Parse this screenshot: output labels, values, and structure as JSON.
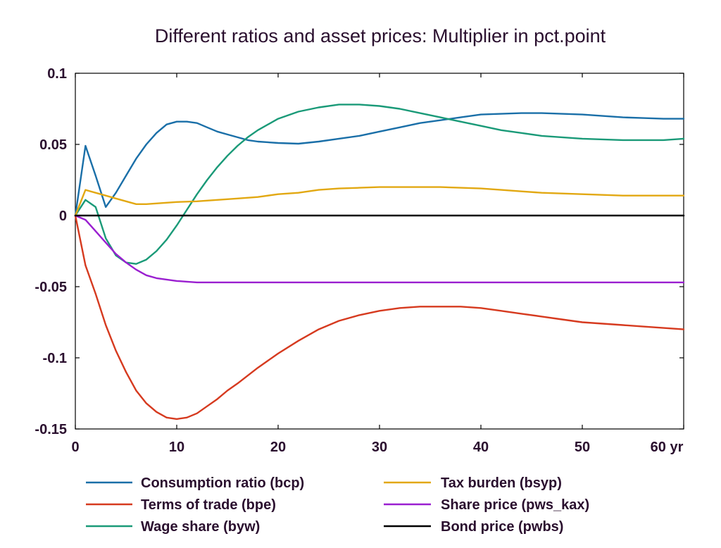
{
  "chart_data": {
    "type": "line",
    "title": "Different ratios and asset prices: Multiplier in pct.point",
    "xlabel": "",
    "ylabel": "",
    "xlim": [
      0,
      60
    ],
    "ylim": [
      -0.15,
      0.1
    ],
    "x_ticks": [
      0,
      10,
      20,
      30,
      40,
      50,
      60
    ],
    "x_tick_labels": [
      "0",
      "10",
      "20",
      "30",
      "40",
      "50",
      "60 yr"
    ],
    "y_ticks": [
      0.1,
      0.05,
      0,
      -0.05,
      -0.1,
      -0.15
    ],
    "y_tick_labels": [
      "0.1",
      "0.05",
      "0",
      "-0.05",
      "-0.1",
      "-0.15"
    ],
    "grid": false,
    "legend_position": "bottom",
    "series": [
      {
        "name": "Consumption ratio (bcp)",
        "color": "#1a6fa8",
        "points": [
          [
            0,
            0
          ],
          [
            1,
            0.049
          ],
          [
            2,
            0.028
          ],
          [
            3,
            0.006
          ],
          [
            4,
            0.016
          ],
          [
            5,
            0.028
          ],
          [
            6,
            0.04
          ],
          [
            7,
            0.05
          ],
          [
            8,
            0.058
          ],
          [
            9,
            0.064
          ],
          [
            10,
            0.066
          ],
          [
            11,
            0.066
          ],
          [
            12,
            0.065
          ],
          [
            13,
            0.062
          ],
          [
            14,
            0.059
          ],
          [
            15,
            0.057
          ],
          [
            16,
            0.055
          ],
          [
            17,
            0.053
          ],
          [
            18,
            0.052
          ],
          [
            20,
            0.051
          ],
          [
            22,
            0.0505
          ],
          [
            24,
            0.052
          ],
          [
            26,
            0.054
          ],
          [
            28,
            0.056
          ],
          [
            30,
            0.059
          ],
          [
            32,
            0.062
          ],
          [
            34,
            0.065
          ],
          [
            36,
            0.067
          ],
          [
            38,
            0.069
          ],
          [
            40,
            0.071
          ],
          [
            42,
            0.0715
          ],
          [
            44,
            0.072
          ],
          [
            46,
            0.072
          ],
          [
            48,
            0.0715
          ],
          [
            50,
            0.071
          ],
          [
            52,
            0.07
          ],
          [
            54,
            0.069
          ],
          [
            56,
            0.0685
          ],
          [
            58,
            0.068
          ],
          [
            60,
            0.068
          ]
        ]
      },
      {
        "name": "Terms of trade (bpe)",
        "color": "#d63a1f",
        "points": [
          [
            0,
            0
          ],
          [
            1,
            -0.035
          ],
          [
            2,
            -0.055
          ],
          [
            3,
            -0.077
          ],
          [
            4,
            -0.095
          ],
          [
            5,
            -0.11
          ],
          [
            6,
            -0.123
          ],
          [
            7,
            -0.132
          ],
          [
            8,
            -0.138
          ],
          [
            9,
            -0.142
          ],
          [
            10,
            -0.143
          ],
          [
            11,
            -0.142
          ],
          [
            12,
            -0.139
          ],
          [
            13,
            -0.134
          ],
          [
            14,
            -0.129
          ],
          [
            15,
            -0.123
          ],
          [
            16,
            -0.118
          ],
          [
            18,
            -0.107
          ],
          [
            20,
            -0.097
          ],
          [
            22,
            -0.088
          ],
          [
            24,
            -0.08
          ],
          [
            26,
            -0.074
          ],
          [
            28,
            -0.07
          ],
          [
            30,
            -0.067
          ],
          [
            32,
            -0.065
          ],
          [
            34,
            -0.064
          ],
          [
            36,
            -0.064
          ],
          [
            38,
            -0.064
          ],
          [
            40,
            -0.065
          ],
          [
            42,
            -0.067
          ],
          [
            44,
            -0.069
          ],
          [
            46,
            -0.071
          ],
          [
            48,
            -0.073
          ],
          [
            50,
            -0.075
          ],
          [
            52,
            -0.076
          ],
          [
            54,
            -0.077
          ],
          [
            56,
            -0.078
          ],
          [
            58,
            -0.079
          ],
          [
            60,
            -0.08
          ]
        ]
      },
      {
        "name": "Wage share (byw)",
        "color": "#1a9a78",
        "points": [
          [
            0,
            0
          ],
          [
            1,
            0.011
          ],
          [
            2,
            0.006
          ],
          [
            3,
            -0.016
          ],
          [
            4,
            -0.028
          ],
          [
            5,
            -0.033
          ],
          [
            6,
            -0.034
          ],
          [
            7,
            -0.031
          ],
          [
            8,
            -0.025
          ],
          [
            9,
            -0.017
          ],
          [
            10,
            -0.007
          ],
          [
            11,
            0.004
          ],
          [
            12,
            0.015
          ],
          [
            13,
            0.025
          ],
          [
            14,
            0.034
          ],
          [
            15,
            0.042
          ],
          [
            16,
            0.049
          ],
          [
            17,
            0.055
          ],
          [
            18,
            0.06
          ],
          [
            20,
            0.068
          ],
          [
            22,
            0.073
          ],
          [
            24,
            0.076
          ],
          [
            26,
            0.078
          ],
          [
            28,
            0.078
          ],
          [
            30,
            0.077
          ],
          [
            32,
            0.075
          ],
          [
            34,
            0.072
          ],
          [
            36,
            0.069
          ],
          [
            38,
            0.066
          ],
          [
            40,
            0.063
          ],
          [
            42,
            0.06
          ],
          [
            44,
            0.058
          ],
          [
            46,
            0.056
          ],
          [
            48,
            0.055
          ],
          [
            50,
            0.054
          ],
          [
            52,
            0.0535
          ],
          [
            54,
            0.053
          ],
          [
            56,
            0.053
          ],
          [
            58,
            0.053
          ],
          [
            60,
            0.054
          ]
        ]
      },
      {
        "name": "Tax burden (bsyp)",
        "color": "#e2a812",
        "points": [
          [
            0,
            0
          ],
          [
            1,
            0.018
          ],
          [
            2,
            0.016
          ],
          [
            3,
            0.014
          ],
          [
            4,
            0.012
          ],
          [
            5,
            0.01
          ],
          [
            6,
            0.008
          ],
          [
            7,
            0.008
          ],
          [
            8,
            0.0085
          ],
          [
            10,
            0.0095
          ],
          [
            12,
            0.01
          ],
          [
            14,
            0.011
          ],
          [
            16,
            0.012
          ],
          [
            18,
            0.013
          ],
          [
            20,
            0.015
          ],
          [
            22,
            0.016
          ],
          [
            24,
            0.018
          ],
          [
            26,
            0.019
          ],
          [
            28,
            0.0195
          ],
          [
            30,
            0.02
          ],
          [
            32,
            0.02
          ],
          [
            34,
            0.02
          ],
          [
            36,
            0.02
          ],
          [
            38,
            0.0195
          ],
          [
            40,
            0.019
          ],
          [
            42,
            0.018
          ],
          [
            44,
            0.017
          ],
          [
            46,
            0.016
          ],
          [
            48,
            0.0155
          ],
          [
            50,
            0.015
          ],
          [
            52,
            0.0145
          ],
          [
            54,
            0.014
          ],
          [
            56,
            0.014
          ],
          [
            58,
            0.014
          ],
          [
            60,
            0.014
          ]
        ]
      },
      {
        "name": "Share price (pws_kax)",
        "color": "#9a1fd0",
        "points": [
          [
            0,
            0
          ],
          [
            1,
            -0.003
          ],
          [
            2,
            -0.011
          ],
          [
            3,
            -0.019
          ],
          [
            4,
            -0.027
          ],
          [
            5,
            -0.033
          ],
          [
            6,
            -0.038
          ],
          [
            7,
            -0.042
          ],
          [
            8,
            -0.044
          ],
          [
            9,
            -0.045
          ],
          [
            10,
            -0.046
          ],
          [
            11,
            -0.0465
          ],
          [
            12,
            -0.047
          ],
          [
            14,
            -0.047
          ],
          [
            16,
            -0.047
          ],
          [
            20,
            -0.047
          ],
          [
            25,
            -0.047
          ],
          [
            30,
            -0.047
          ],
          [
            40,
            -0.047
          ],
          [
            50,
            -0.047
          ],
          [
            60,
            -0.047
          ]
        ]
      },
      {
        "name": "Bond price (pwbs)",
        "color": "#000000",
        "points": [
          [
            0,
            0
          ],
          [
            60,
            0
          ]
        ]
      }
    ]
  },
  "legend": {
    "left": [
      "Consumption ratio (bcp)",
      "Terms of trade (bpe)",
      "Wage share (byw)"
    ],
    "right": [
      "Tax burden (bsyp)",
      "Share price (pws_kax)",
      "Bond price (pwbs)"
    ]
  }
}
